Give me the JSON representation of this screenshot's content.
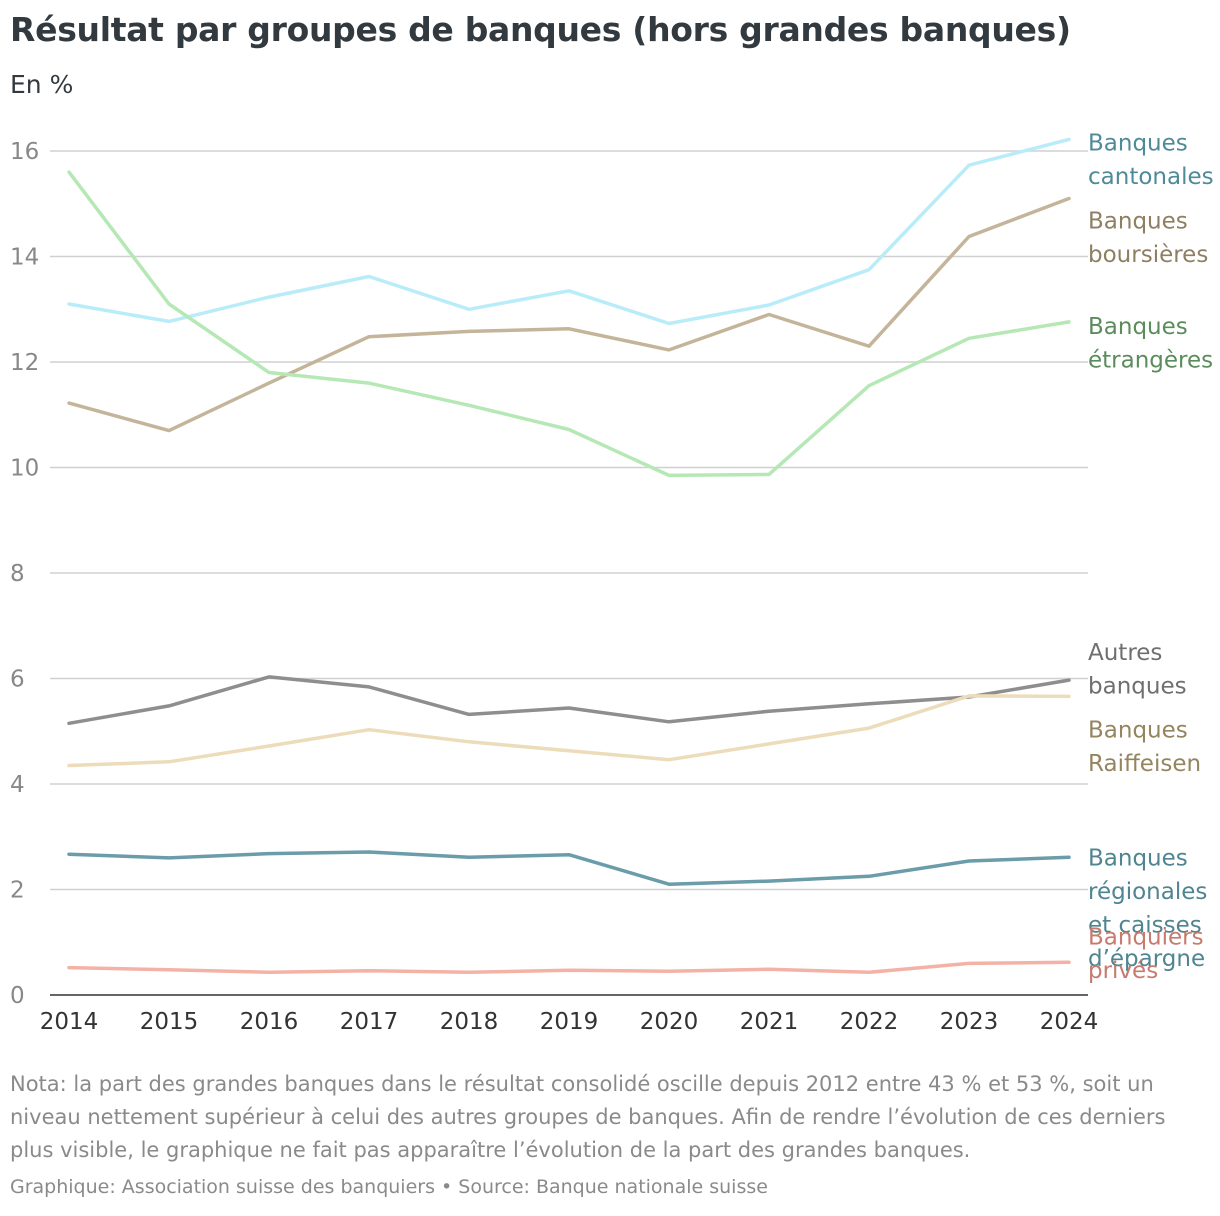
{
  "title": "Résultat par groupes de banques (hors grandes banques)",
  "subtitle": "En %",
  "note": "Nota: la part des grandes banques dans le résultat consolidé oscille depuis 2012 entre 43 % et 53 %, soit un niveau nettement supérieur à celui des autres groupes de banques. Afin de rendre l’évolution de ces derniers plus visible, le graphique ne fait pas apparaître l’évolution de la part des grandes banques.",
  "source": "Graphique: Association suisse des banquiers • Source: Banque nationale suisse",
  "chart_data": {
    "type": "line",
    "title": "Résultat par groupes de banques (hors grandes banques)",
    "ylabel": "En %",
    "ylim": [
      0,
      16
    ],
    "yticks": [
      0,
      2,
      4,
      6,
      8,
      10,
      12,
      14,
      16
    ],
    "x": [
      "2014",
      "2015",
      "2016",
      "2017",
      "2018",
      "2019",
      "2020",
      "2021",
      "2022",
      "2023",
      "2024"
    ],
    "series": [
      {
        "name": "Banques cantonales",
        "label_lines": [
          "Banques",
          "cantonales"
        ],
        "color": "#b9ecf9",
        "label_color": "#4f8a99",
        "values": [
          13.1,
          12.77,
          13.23,
          13.62,
          13.0,
          13.35,
          12.73,
          13.08,
          13.75,
          15.73,
          16.22
        ]
      },
      {
        "name": "Banques boursières",
        "label_lines": [
          "Banques",
          "boursières"
        ],
        "color": "#c4b59a",
        "label_color": "#8e7f62",
        "values": [
          11.22,
          10.7,
          11.6,
          12.48,
          12.58,
          12.63,
          12.23,
          12.9,
          12.3,
          14.38,
          15.1
        ]
      },
      {
        "name": "Banques étrangères",
        "label_lines": [
          "Banques",
          "étrangères"
        ],
        "color": "#b5e8b5",
        "label_color": "#5b8c5b",
        "values": [
          15.6,
          13.1,
          11.8,
          11.6,
          11.18,
          10.72,
          9.85,
          9.87,
          11.55,
          12.45,
          12.76
        ]
      },
      {
        "name": "Autres banques",
        "label_lines": [
          "Autres",
          "banques"
        ],
        "color": "#8e8e8e",
        "label_color": "#6f6f6f",
        "values": [
          5.15,
          5.48,
          6.03,
          5.84,
          5.32,
          5.44,
          5.18,
          5.38,
          5.52,
          5.65,
          5.97
        ]
      },
      {
        "name": "Banques Raiffeisen",
        "label_lines": [
          "Banques",
          "Raiffeisen"
        ],
        "color": "#ecdcb9",
        "label_color": "#94855f",
        "values": [
          4.35,
          4.42,
          4.72,
          5.03,
          4.8,
          4.63,
          4.46,
          4.76,
          5.06,
          5.67,
          5.66
        ]
      },
      {
        "name": "Banques régionales et caisses d’épargne",
        "label_lines": [
          "Banques",
          "régionales",
          "et caisses",
          "d’épargne"
        ],
        "color": "#6a9ca9",
        "label_color": "#4f8591",
        "values": [
          2.67,
          2.6,
          2.68,
          2.71,
          2.61,
          2.66,
          2.1,
          2.16,
          2.25,
          2.54,
          2.61
        ]
      },
      {
        "name": "Banquiers privés",
        "label_lines": [
          "Banquiers",
          "privés"
        ],
        "color": "#f4b2a6",
        "label_color": "#c87a6d",
        "values": [
          0.52,
          0.48,
          0.43,
          0.46,
          0.43,
          0.47,
          0.45,
          0.49,
          0.43,
          0.6,
          0.62
        ]
      }
    ]
  }
}
